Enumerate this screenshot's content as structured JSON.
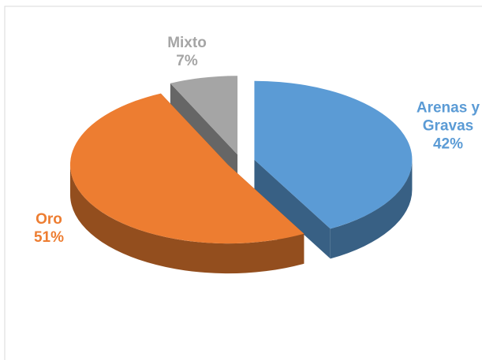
{
  "chart_data": {
    "type": "pie",
    "categories": [
      "Arenas y Gravas",
      "Oro",
      "Mixto"
    ],
    "values": [
      42,
      51,
      7
    ],
    "value_labels": [
      "42%",
      "51%",
      "7%"
    ],
    "colors": [
      "#5b9bd5",
      "#ed7d31",
      "#a5a5a5"
    ]
  }
}
